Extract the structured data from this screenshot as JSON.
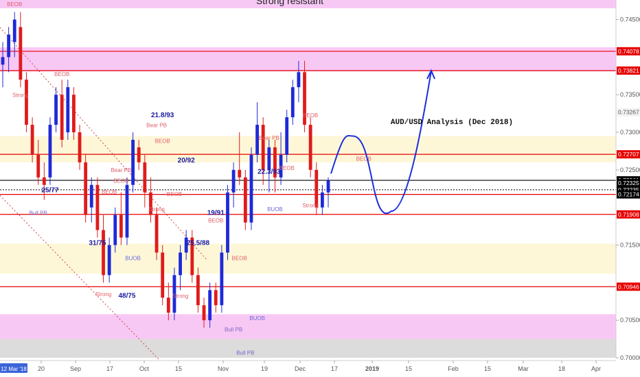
{
  "chart_data": {
    "type": "candlestick",
    "title": "AUD/USD Analysis (Dec 2018)",
    "zone_label": "Strong resistant",
    "ylim": [
      0.7,
      0.7476
    ],
    "y_ticks": [
      "0.74500",
      "0.73500",
      "0.73000",
      "0.72500",
      "0.71500",
      "0.70500",
      "0.70000"
    ],
    "x_ticks": [
      "20",
      "Sep",
      "17",
      "Oct",
      "15",
      "Nov",
      "19",
      "Dec",
      "17",
      "2019",
      "15",
      "Feb",
      "15",
      "Mar",
      "18",
      "Apr"
    ],
    "x_current_label": "12 Mar '18",
    "price_labels": [
      {
        "value": 0.74078,
        "text": "0.74078",
        "bg": "#e60000",
        "fg": "#ffffff"
      },
      {
        "value": 0.73821,
        "text": "0.73821",
        "bg": "#e60000",
        "fg": "#ffffff"
      },
      {
        "value": 0.73267,
        "text": "0.73267",
        "bg": "#f2f2f2",
        "fg": "#555555"
      },
      {
        "value": 0.72707,
        "text": "0.72707",
        "bg": "#e60000",
        "fg": "#ffffff"
      },
      {
        "value": 0.72361,
        "text": "0.72361",
        "bg": "#000000",
        "fg": "#ffffff"
      },
      {
        "value": 0.72325,
        "text": "0.72325",
        "bg": "#000000",
        "fg": "#ffffff"
      },
      {
        "value": 0.72235,
        "text": "0.72235",
        "bg": "#000000",
        "fg": "#ffffff"
      },
      {
        "value": 0.72174,
        "text": "0.72174",
        "bg": "#000000",
        "fg": "#ffffff"
      },
      {
        "value": 0.71908,
        "text": "0.71908",
        "bg": "#e60000",
        "fg": "#ffffff"
      },
      {
        "value": 0.70946,
        "text": "0.70946",
        "bg": "#e60000",
        "fg": "#ffffff"
      }
    ],
    "zones": [
      {
        "from": 0.7465,
        "to": 0.7476,
        "color": "#f8c8f5"
      },
      {
        "from": 0.7381,
        "to": 0.7413,
        "color": "#f8c8f5"
      },
      {
        "from": 0.726,
        "to": 0.7295,
        "color": "#fdf7d8"
      },
      {
        "from": 0.7112,
        "to": 0.7152,
        "color": "#fdf7d8"
      },
      {
        "from": 0.7025,
        "to": 0.7058,
        "color": "#f8c8f5"
      },
      {
        "from": 0.7,
        "to": 0.7025,
        "color": "#dcdcdc"
      }
    ],
    "levels": [
      0.74078,
      0.73821,
      0.72707,
      0.72361,
      0.72174,
      0.71908,
      0.70946
    ],
    "candles": [
      {
        "o": 0.739,
        "h": 0.742,
        "l": 0.736,
        "c": 0.74
      },
      {
        "o": 0.74,
        "h": 0.744,
        "l": 0.738,
        "c": 0.743
      },
      {
        "o": 0.742,
        "h": 0.746,
        "l": 0.74,
        "c": 0.745
      },
      {
        "o": 0.744,
        "h": 0.746,
        "l": 0.736,
        "c": 0.737
      },
      {
        "o": 0.737,
        "h": 0.738,
        "l": 0.73,
        "c": 0.731
      },
      {
        "o": 0.731,
        "h": 0.732,
        "l": 0.726,
        "c": 0.727
      },
      {
        "o": 0.727,
        "h": 0.729,
        "l": 0.723,
        "c": 0.724
      },
      {
        "o": 0.724,
        "h": 0.726,
        "l": 0.721,
        "c": 0.723
      },
      {
        "o": 0.724,
        "h": 0.732,
        "l": 0.723,
        "c": 0.731
      },
      {
        "o": 0.731,
        "h": 0.736,
        "l": 0.73,
        "c": 0.735
      },
      {
        "o": 0.735,
        "h": 0.737,
        "l": 0.728,
        "c": 0.729
      },
      {
        "o": 0.73,
        "h": 0.737,
        "l": 0.729,
        "c": 0.736
      },
      {
        "o": 0.735,
        "h": 0.736,
        "l": 0.729,
        "c": 0.73
      },
      {
        "o": 0.73,
        "h": 0.731,
        "l": 0.725,
        "c": 0.726
      },
      {
        "o": 0.726,
        "h": 0.727,
        "l": 0.718,
        "c": 0.719
      },
      {
        "o": 0.72,
        "h": 0.724,
        "l": 0.718,
        "c": 0.723
      },
      {
        "o": 0.723,
        "h": 0.724,
        "l": 0.716,
        "c": 0.717
      },
      {
        "o": 0.717,
        "h": 0.719,
        "l": 0.71,
        "c": 0.711
      },
      {
        "o": 0.711,
        "h": 0.716,
        "l": 0.71,
        "c": 0.715
      },
      {
        "o": 0.715,
        "h": 0.72,
        "l": 0.714,
        "c": 0.719
      },
      {
        "o": 0.719,
        "h": 0.722,
        "l": 0.715,
        "c": 0.716
      },
      {
        "o": 0.716,
        "h": 0.724,
        "l": 0.715,
        "c": 0.723
      },
      {
        "o": 0.723,
        "h": 0.73,
        "l": 0.722,
        "c": 0.729
      },
      {
        "o": 0.728,
        "h": 0.729,
        "l": 0.725,
        "c": 0.726
      },
      {
        "o": 0.726,
        "h": 0.727,
        "l": 0.72,
        "c": 0.722
      },
      {
        "o": 0.722,
        "h": 0.724,
        "l": 0.718,
        "c": 0.719
      },
      {
        "o": 0.719,
        "h": 0.72,
        "l": 0.713,
        "c": 0.714
      },
      {
        "o": 0.714,
        "h": 0.715,
        "l": 0.707,
        "c": 0.708
      },
      {
        "o": 0.708,
        "h": 0.71,
        "l": 0.705,
        "c": 0.706
      },
      {
        "o": 0.706,
        "h": 0.712,
        "l": 0.705,
        "c": 0.711
      },
      {
        "o": 0.711,
        "h": 0.715,
        "l": 0.709,
        "c": 0.714
      },
      {
        "o": 0.714,
        "h": 0.717,
        "l": 0.713,
        "c": 0.716
      },
      {
        "o": 0.716,
        "h": 0.717,
        "l": 0.71,
        "c": 0.711
      },
      {
        "o": 0.711,
        "h": 0.712,
        "l": 0.706,
        "c": 0.707
      },
      {
        "o": 0.707,
        "h": 0.708,
        "l": 0.704,
        "c": 0.705
      },
      {
        "o": 0.705,
        "h": 0.71,
        "l": 0.704,
        "c": 0.709
      },
      {
        "o": 0.709,
        "h": 0.71,
        "l": 0.706,
        "c": 0.707
      },
      {
        "o": 0.707,
        "h": 0.715,
        "l": 0.706,
        "c": 0.714
      },
      {
        "o": 0.714,
        "h": 0.723,
        "l": 0.713,
        "c": 0.722
      },
      {
        "o": 0.722,
        "h": 0.726,
        "l": 0.72,
        "c": 0.725
      },
      {
        "o": 0.725,
        "h": 0.73,
        "l": 0.723,
        "c": 0.724
      },
      {
        "o": 0.724,
        "h": 0.725,
        "l": 0.717,
        "c": 0.718
      },
      {
        "o": 0.718,
        "h": 0.728,
        "l": 0.717,
        "c": 0.727
      },
      {
        "o": 0.727,
        "h": 0.734,
        "l": 0.726,
        "c": 0.731
      },
      {
        "o": 0.731,
        "h": 0.732,
        "l": 0.723,
        "c": 0.725
      },
      {
        "o": 0.725,
        "h": 0.729,
        "l": 0.722,
        "c": 0.728
      },
      {
        "o": 0.728,
        "h": 0.729,
        "l": 0.722,
        "c": 0.724
      },
      {
        "o": 0.724,
        "h": 0.73,
        "l": 0.723,
        "c": 0.727
      },
      {
        "o": 0.727,
        "h": 0.733,
        "l": 0.726,
        "c": 0.732
      },
      {
        "o": 0.732,
        "h": 0.737,
        "l": 0.731,
        "c": 0.736
      },
      {
        "o": 0.736,
        "h": 0.7395,
        "l": 0.734,
        "c": 0.738
      },
      {
        "o": 0.738,
        "h": 0.7395,
        "l": 0.73,
        "c": 0.731
      },
      {
        "o": 0.731,
        "h": 0.732,
        "l": 0.724,
        "c": 0.725
      },
      {
        "o": 0.725,
        "h": 0.726,
        "l": 0.719,
        "c": 0.72
      },
      {
        "o": 0.72,
        "h": 0.723,
        "l": 0.719,
        "c": 0.722
      },
      {
        "o": 0.722,
        "h": 0.724,
        "l": 0.72,
        "c": 0.7236
      }
    ],
    "projection": [
      [
        0.7245,
        0
      ],
      [
        0.7295,
        0.22
      ],
      [
        0.7225,
        0.45
      ],
      [
        0.7195,
        0.6
      ],
      [
        0.7382,
        1
      ]
    ],
    "annotations": [
      {
        "text": "BEOB",
        "i": 2,
        "y": 0.7468,
        "color": "#e0606a",
        "size": 8
      },
      {
        "text": "Strong",
        "i": 3,
        "y": 0.7347,
        "color": "#e0606a",
        "size": 8
      },
      {
        "text": "BEOB",
        "i": 10,
        "y": 0.7375,
        "color": "#e0606a",
        "size": 8
      },
      {
        "text": "25/77",
        "i": 8,
        "y": 0.722,
        "color": "#1a1aa0",
        "size": 10,
        "bold": true
      },
      {
        "text": "Bull PB",
        "i": 6,
        "y": 0.719,
        "color": "#7a66c8",
        "size": 8
      },
      {
        "text": "31/75",
        "i": 16,
        "y": 0.715,
        "color": "#1a1aa0",
        "size": 10,
        "bold": true
      },
      {
        "text": "BUOB",
        "i": 22,
        "y": 0.713,
        "color": "#6a6ad8",
        "size": 8
      },
      {
        "text": "Bear PB",
        "i": 20,
        "y": 0.7247,
        "color": "#e0606a",
        "size": 8
      },
      {
        "text": "BEOB",
        "i": 20,
        "y": 0.7233,
        "color": "#e0606a",
        "size": 8
      },
      {
        "text": "BEOB",
        "i": 18,
        "y": 0.7218,
        "color": "#e0606a",
        "size": 8
      },
      {
        "text": "Strong",
        "i": 17,
        "y": 0.7082,
        "color": "#e0606a",
        "size": 8
      },
      {
        "text": "48/75",
        "i": 21,
        "y": 0.708,
        "color": "#1a1aa0",
        "size": 10,
        "bold": true
      },
      {
        "text": "21.8/93",
        "i": 27,
        "y": 0.732,
        "color": "#1a1aa0",
        "size": 10,
        "bold": true
      },
      {
        "text": "Bear PB",
        "i": 26,
        "y": 0.7307,
        "color": "#e0606a",
        "size": 8
      },
      {
        "text": "BEOB",
        "i": 27,
        "y": 0.7286,
        "color": "#e0606a",
        "size": 8
      },
      {
        "text": "20/92",
        "i": 31,
        "y": 0.726,
        "color": "#1a1aa0",
        "size": 10,
        "bold": true
      },
      {
        "text": "BEOB",
        "i": 29,
        "y": 0.7215,
        "color": "#e0606a",
        "size": 8
      },
      {
        "text": "Strong",
        "i": 26,
        "y": 0.7195,
        "color": "#e0606a",
        "size": 8
      },
      {
        "text": "Strong",
        "i": 30,
        "y": 0.708,
        "color": "#e0606a",
        "size": 8
      },
      {
        "text": "19/91",
        "i": 36,
        "y": 0.719,
        "color": "#1a1aa0",
        "size": 10,
        "bold": true
      },
      {
        "text": "BEOB",
        "i": 36,
        "y": 0.718,
        "color": "#e0606a",
        "size": 8
      },
      {
        "text": "25.5/88",
        "i": 33,
        "y": 0.715,
        "color": "#1a1aa0",
        "size": 10,
        "bold": true
      },
      {
        "text": "BEOB",
        "i": 40,
        "y": 0.713,
        "color": "#e0606a",
        "size": 8
      },
      {
        "text": "Bull PB",
        "i": 39,
        "y": 0.7035,
        "color": "#7a66c8",
        "size": 8
      },
      {
        "text": "BUOB",
        "i": 43,
        "y": 0.705,
        "color": "#6a6ad8",
        "size": 8
      },
      {
        "text": "Bull PB",
        "i": 41,
        "y": 0.7004,
        "color": "#7a66c8",
        "size": 8
      },
      {
        "text": "22.3/93",
        "i": 45,
        "y": 0.7245,
        "color": "#1a1aa0",
        "size": 10,
        "bold": true
      },
      {
        "text": "Bear PB",
        "i": 45,
        "y": 0.729,
        "color": "#e0606a",
        "size": 8
      },
      {
        "text": "BEOB",
        "i": 48,
        "y": 0.725,
        "color": "#e0606a",
        "size": 8
      },
      {
        "text": "BUOB",
        "i": 46,
        "y": 0.7195,
        "color": "#6a6ad8",
        "size": 8
      },
      {
        "text": "BEOB",
        "i": 52,
        "y": 0.732,
        "color": "#e0606a",
        "size": 8
      },
      {
        "text": "Strong",
        "i": 52,
        "y": 0.72,
        "color": "#e0606a",
        "size": 8
      },
      {
        "text": "BEOB",
        "i": 61,
        "y": 0.7262,
        "color": "#e0606a",
        "size": 8
      }
    ]
  }
}
